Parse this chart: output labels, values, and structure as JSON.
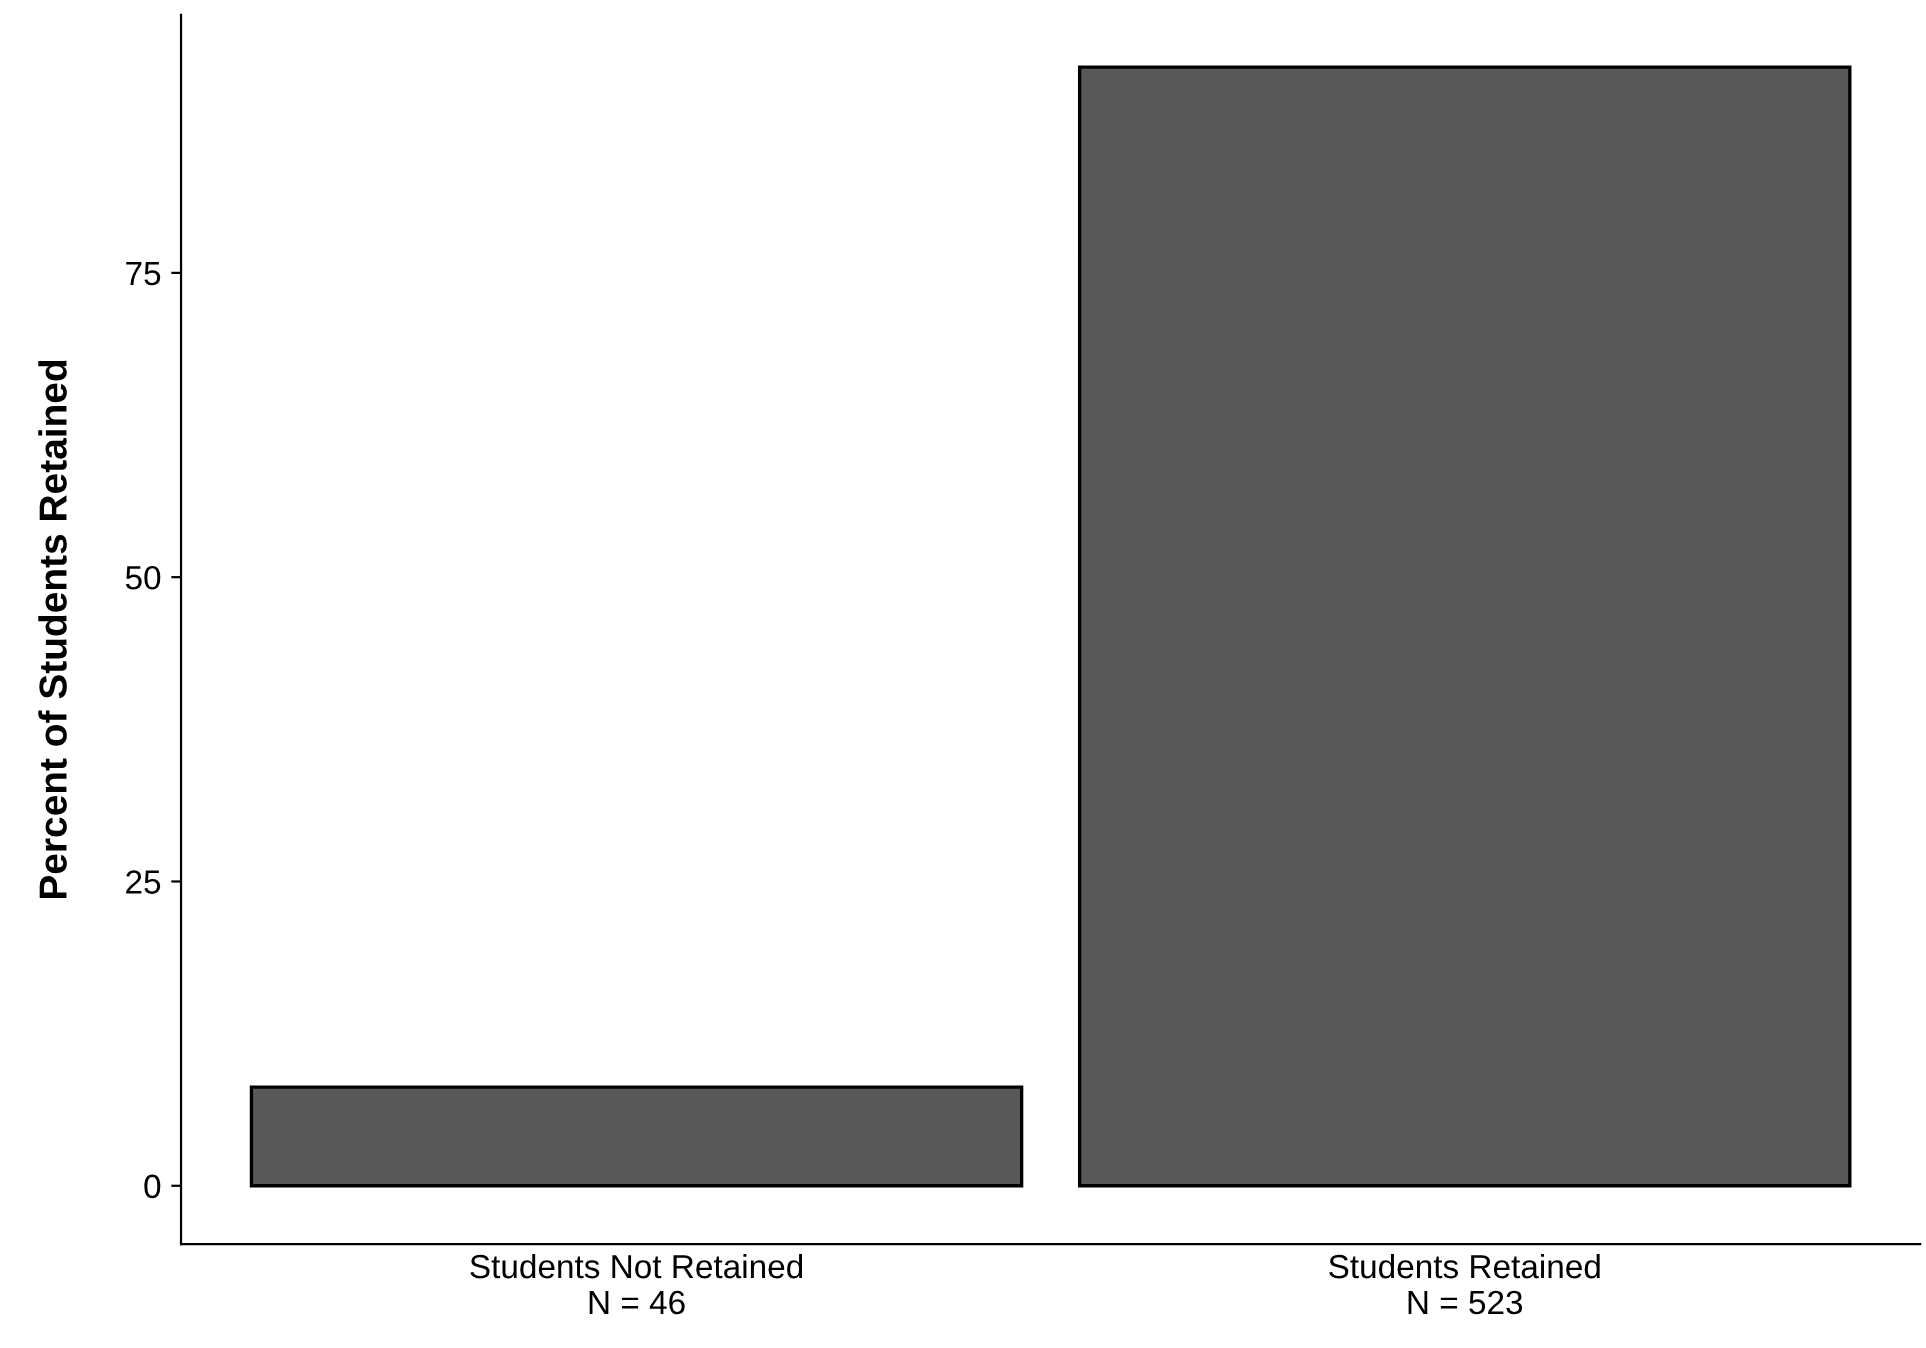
{
  "chart_data": {
    "type": "bar",
    "ylabel": "Percent of Students Retained",
    "categories": [
      "Students Not Retained\nN = 46",
      "Students Retained\nN = 523"
    ],
    "values": [
      8.1,
      91.9
    ],
    "color": "#595959",
    "ylim": [
      -4.8,
      96.2
    ],
    "yticks": [
      0,
      25,
      50,
      75
    ],
    "grid": false
  }
}
